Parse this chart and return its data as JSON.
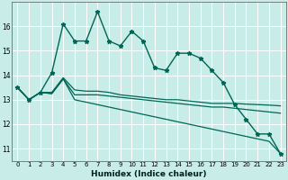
{
  "xlabel": "Humidex (Indice chaleur)",
  "bg_color": "#c8ece8",
  "grid_color": "#ffffff",
  "line_color": "#006655",
  "xlim": [
    -0.5,
    23.5
  ],
  "ylim": [
    10.5,
    17.0
  ],
  "xticks": [
    0,
    1,
    2,
    3,
    4,
    5,
    6,
    7,
    8,
    9,
    10,
    11,
    12,
    13,
    14,
    15,
    16,
    17,
    18,
    19,
    20,
    21,
    22,
    23
  ],
  "yticks": [
    11,
    12,
    13,
    14,
    15,
    16
  ],
  "line1": [
    13.5,
    13.0,
    13.3,
    14.1,
    16.1,
    15.4,
    15.4,
    16.6,
    15.4,
    15.2,
    15.8,
    15.4,
    14.3,
    14.2,
    14.9,
    14.9,
    14.7,
    14.2,
    13.7,
    12.8,
    12.2,
    11.6,
    11.6,
    10.8
  ],
  "line2": [
    13.5,
    13.0,
    13.3,
    13.3,
    13.9,
    13.4,
    13.35,
    13.35,
    13.3,
    13.2,
    13.15,
    13.1,
    13.05,
    13.0,
    13.0,
    12.95,
    12.9,
    12.85,
    12.85,
    12.85,
    12.82,
    12.8,
    12.78,
    12.75
  ],
  "line3": [
    13.5,
    13.0,
    13.3,
    13.25,
    13.85,
    13.2,
    13.2,
    13.2,
    13.15,
    13.1,
    13.05,
    13.0,
    12.95,
    12.9,
    12.85,
    12.8,
    12.75,
    12.7,
    12.7,
    12.65,
    12.6,
    12.55,
    12.5,
    12.45
  ],
  "line4": [
    13.5,
    13.0,
    13.3,
    13.25,
    13.85,
    13.0,
    12.9,
    12.8,
    12.7,
    12.6,
    12.5,
    12.4,
    12.3,
    12.2,
    12.1,
    12.0,
    11.9,
    11.8,
    11.7,
    11.6,
    11.5,
    11.4,
    11.3,
    10.8
  ]
}
